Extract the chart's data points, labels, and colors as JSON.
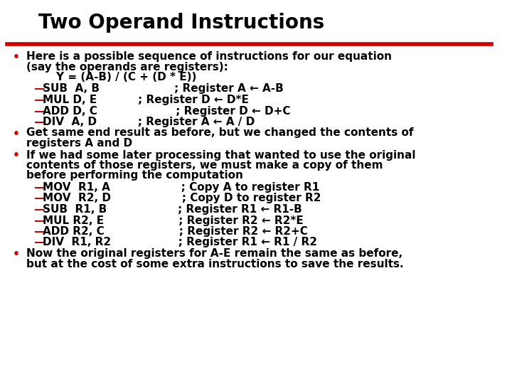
{
  "title": "Two Operand Instructions",
  "title_color": "#000000",
  "title_bg": "#ffffff",
  "red_line_color": "#cc0000",
  "bullet_color": "#cc0000",
  "dash_color": "#cc0000",
  "text_color": "#000000",
  "bg_color": "#ffffff",
  "font_family": "DejaVu Sans",
  "content": [
    {
      "type": "bullet",
      "text": "Here is a possible sequence of instructions for our equation\n(say the operands are registers):\n        Y = (A-B) / (C + (D * E))"
    },
    {
      "type": "dash",
      "text": "SUB  A, B                    ; Register A ← A-B"
    },
    {
      "type": "dash",
      "text": "MUL D, E           ; Register D ← D*E"
    },
    {
      "type": "dash",
      "text": "ADD D, C                     ; Register D ← D+C"
    },
    {
      "type": "dash",
      "text": "DIV  A, D           ; Register A ← A / D"
    },
    {
      "type": "bullet",
      "text": "Get same end result as before, but we changed the contents of\nregisters A and D"
    },
    {
      "type": "bullet",
      "text": "If we had some later processing that wanted to use the original\ncontents of those registers, we must make a copy of them\nbefore performing the computation"
    },
    {
      "type": "dash",
      "text": "MOV  R1, A                   ; Copy A to register R1"
    },
    {
      "type": "dash",
      "text": "MOV  R2, D                   ; Copy D to register R2"
    },
    {
      "type": "dash",
      "text": "SUB  R1, B                   ; Register R1 ← R1-B"
    },
    {
      "type": "dash",
      "text": "MUL R2, E                    ; Register R2 ← R2*E"
    },
    {
      "type": "dash",
      "text": "ADD R2, C                    ; Register R2 ← R2+C"
    },
    {
      "type": "dash",
      "text": "DIV  R1, R2                  ; Register R1 ← R1 / R2"
    },
    {
      "type": "bullet",
      "text": "Now the original registers for A-E remain the same as before,\nbut at the cost of some extra instructions to save the results."
    }
  ]
}
